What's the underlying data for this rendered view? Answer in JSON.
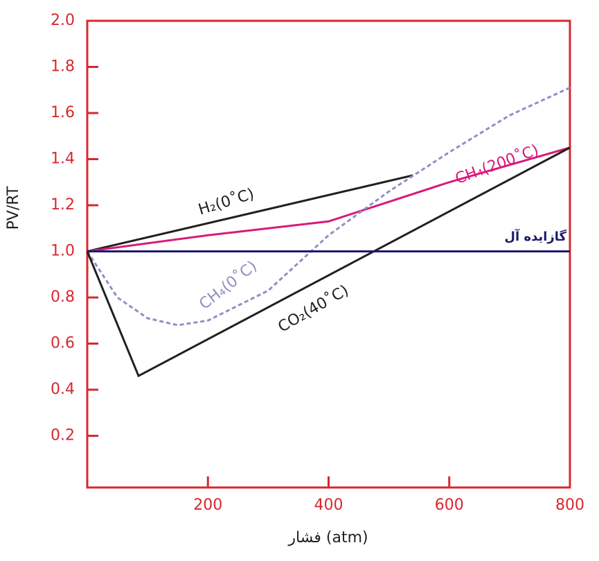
{
  "chart_data": {
    "type": "line",
    "y_label": "PV/RT",
    "x_label": "فشار (atm)",
    "xlim": [
      0,
      800
    ],
    "ylim": [
      0,
      2.0
    ],
    "xticks": [
      200,
      400,
      600,
      800
    ],
    "yticks": [
      0.2,
      0.4,
      0.6,
      0.8,
      {
        "value": 1,
        "label": "1.0"
      },
      1.2,
      1.4,
      1.6,
      1.8,
      {
        "value": 2,
        "label": "2.0"
      }
    ],
    "axis_color": "#d7282f",
    "series": [
      {
        "name": "H₂(0˚C)",
        "color": "#231f20",
        "dash": false,
        "x": [
          0,
          540
        ],
        "values": [
          1.0,
          1.33
        ]
      },
      {
        "name": "CH₄(200˚C)",
        "color": "#d9197a",
        "dash": false,
        "x": [
          0,
          200,
          400,
          600,
          800
        ],
        "values": [
          1.0,
          1.07,
          1.13,
          1.3,
          1.45
        ]
      },
      {
        "name": "CH₄(0˚C)",
        "color": "#8f8fc4",
        "dash": true,
        "x": [
          0,
          50,
          100,
          150,
          200,
          300,
          400,
          500,
          600,
          700,
          800
        ],
        "values": [
          1.0,
          0.8,
          0.71,
          0.68,
          0.7,
          0.83,
          1.07,
          1.26,
          1.43,
          1.59,
          1.71
        ]
      },
      {
        "name": "CO₂(40˚C)",
        "color": "#231f20",
        "dash": false,
        "x": [
          0,
          85,
          800
        ],
        "values": [
          1.0,
          0.46,
          1.45
        ]
      },
      {
        "name": "گازایده آل",
        "color": "#1c1a6b",
        "dash": false,
        "x": [
          0,
          800
        ],
        "values": [
          1.0,
          1.0
        ]
      }
    ]
  }
}
